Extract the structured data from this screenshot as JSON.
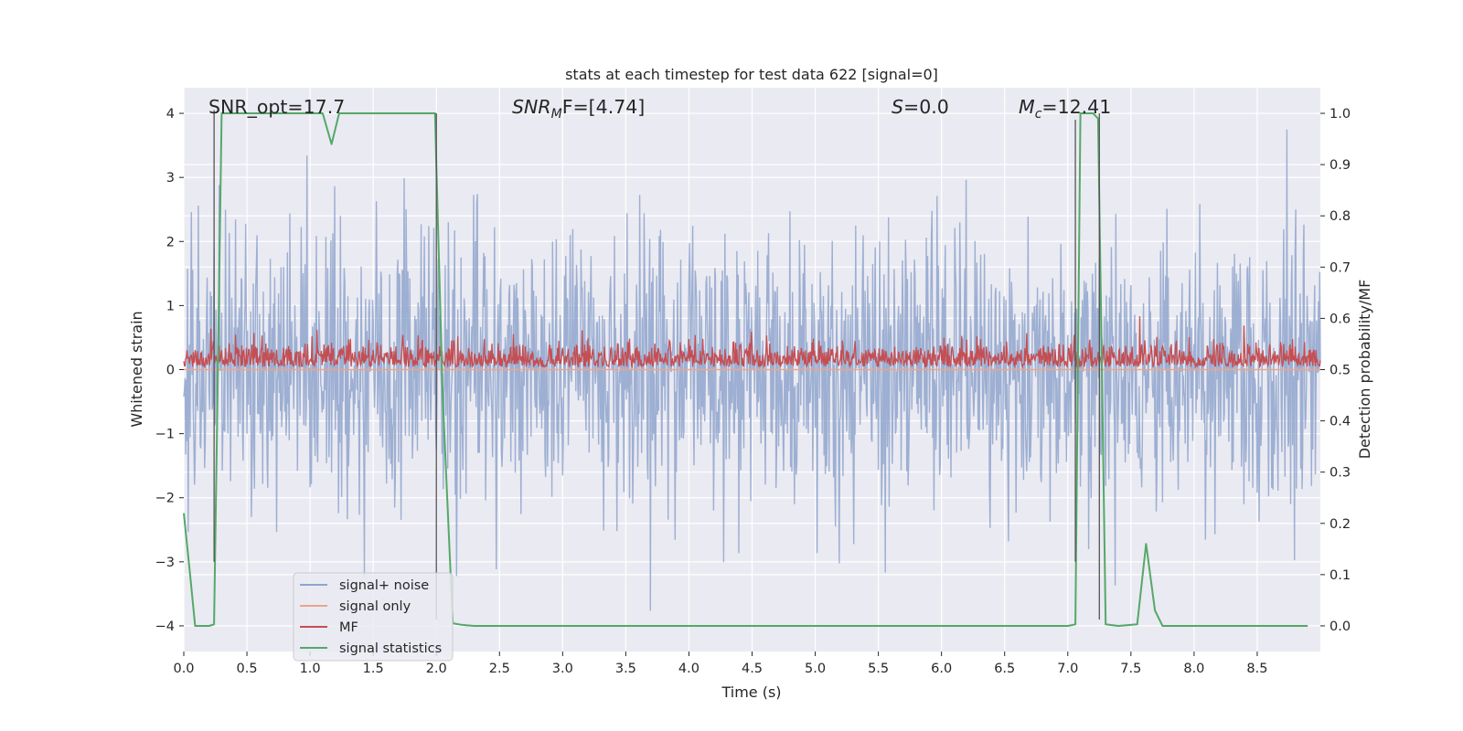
{
  "chart_data": {
    "type": "line",
    "title": "stats at each timestep for test data 622 [signal=0]",
    "xlabel": "Time (s)",
    "ylabel_left": "Whitened strain",
    "ylabel_right": "Detection probability/MF",
    "xlim": [
      0.0,
      9.0
    ],
    "ylim_left": [
      -4.4,
      4.4
    ],
    "ylim_right": [
      -0.05,
      1.05
    ],
    "xticks": [
      0.0,
      0.5,
      1.0,
      1.5,
      2.0,
      2.5,
      3.0,
      3.5,
      4.0,
      4.5,
      5.0,
      5.5,
      6.0,
      6.5,
      7.0,
      7.5,
      8.0,
      8.5
    ],
    "xtick_labels": [
      "0.0",
      "0.5",
      "1.0",
      "1.5",
      "2.0",
      "2.5",
      "3.0",
      "3.5",
      "4.0",
      "4.5",
      "5.0",
      "5.5",
      "6.0",
      "6.5",
      "7.0",
      "7.5",
      "8.0",
      "8.5"
    ],
    "yticks_left": [
      4,
      3,
      2,
      1,
      0,
      -1,
      -2,
      -3,
      -4
    ],
    "ytick_labels_left": [
      "4",
      "3",
      "2",
      "1",
      "0",
      "−1",
      "−2",
      "−3",
      "−4"
    ],
    "yticks_right": [
      1.0,
      0.9,
      0.8,
      0.7,
      0.6,
      0.5,
      0.4,
      0.3,
      0.2,
      0.1,
      0.0
    ],
    "ytick_labels_right": [
      "1.0",
      "0.9",
      "0.8",
      "0.7",
      "0.6",
      "0.5",
      "0.4",
      "0.3",
      "0.2",
      "0.1",
      "0.0"
    ],
    "grid": true,
    "annotations": {
      "snr_opt": "SNR_opt=17.7",
      "snr_mf_sym": "SNR",
      "snr_mf_sub": "M",
      "snr_mf_rest": "F=[4.74]",
      "s_sym": "S",
      "s_rest": "=0.0",
      "mc_sym": "M",
      "mc_sub": "c",
      "mc_rest": "=12.41"
    },
    "legend": {
      "position": "lower-left",
      "entries": [
        {
          "label": "signal+ noise",
          "color": "#8fa5cc"
        },
        {
          "label": "signal only",
          "color": "#eaa58a"
        },
        {
          "label": "MF",
          "color": "#c44e52"
        },
        {
          "label": "signal statistics",
          "color": "#55a868"
        }
      ]
    },
    "series": [
      {
        "name": "signal+ noise",
        "axis": "left",
        "style": "dense-noise",
        "sample_rate_hz": 200,
        "std": 1.0,
        "approx_range": [
          -4.2,
          4.1
        ],
        "color": "#8fa5cc"
      },
      {
        "name": "signal only",
        "axis": "left",
        "x": [
          0.0,
          9.0
        ],
        "y": [
          0.0,
          0.0
        ],
        "color": "#eaa58a"
      },
      {
        "name": "MF",
        "axis": "right",
        "style": "dense-noise",
        "sample_rate_hz": 200,
        "baseline": 0.5,
        "approx_range": [
          0.5,
          0.61
        ],
        "color": "#c44e52"
      },
      {
        "name": "signal statistics",
        "axis": "right",
        "color": "#55a868",
        "x": [
          0.0,
          0.05,
          0.09,
          0.2,
          0.24,
          0.27,
          0.3,
          0.5,
          1.05,
          1.1,
          1.17,
          1.23,
          1.5,
          1.99,
          2.0,
          2.05,
          2.13,
          2.2,
          2.3,
          7.0,
          7.06,
          7.1,
          7.2,
          7.24,
          7.27,
          7.3,
          7.4,
          7.55,
          7.62,
          7.69,
          7.75,
          8.9
        ],
        "y": [
          0.22,
          0.1,
          0.0,
          0.0,
          0.003,
          0.5,
          1.0,
          1.0,
          1.0,
          1.0,
          0.94,
          1.0,
          1.0,
          1.0,
          0.9,
          0.45,
          0.005,
          0.002,
          0.0,
          0.0,
          0.003,
          1.0,
          1.0,
          0.99,
          0.5,
          0.003,
          0.0,
          0.003,
          0.16,
          0.03,
          0.0,
          0.0
        ]
      }
    ],
    "vertical_markers": [
      {
        "x": 0.24,
        "ymax": 4.05,
        "ymin": -3.0
      },
      {
        "x": 2.0,
        "ymax": 4.0,
        "ymin": -3.9
      },
      {
        "x": 7.06,
        "ymax": 3.9,
        "ymin": -3.0
      },
      {
        "x": 7.25,
        "ymax": 4.0,
        "ymin": -3.9
      }
    ]
  }
}
